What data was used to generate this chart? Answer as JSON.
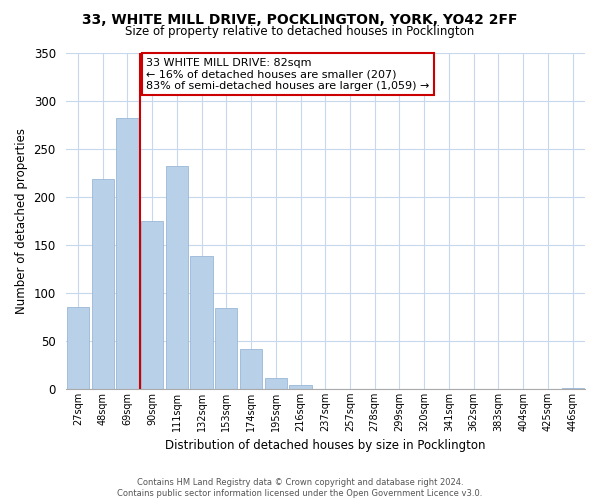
{
  "title": "33, WHITE MILL DRIVE, POCKLINGTON, YORK, YO42 2FF",
  "subtitle": "Size of property relative to detached houses in Pocklington",
  "xlabel": "Distribution of detached houses by size in Pocklington",
  "ylabel": "Number of detached properties",
  "bar_labels": [
    "27sqm",
    "48sqm",
    "69sqm",
    "90sqm",
    "111sqm",
    "132sqm",
    "153sqm",
    "174sqm",
    "195sqm",
    "216sqm",
    "237sqm",
    "257sqm",
    "278sqm",
    "299sqm",
    "320sqm",
    "341sqm",
    "362sqm",
    "383sqm",
    "404sqm",
    "425sqm",
    "446sqm"
  ],
  "bar_values": [
    85,
    218,
    282,
    175,
    232,
    138,
    84,
    41,
    11,
    4,
    0,
    0,
    0,
    0,
    0,
    0,
    0,
    0,
    0,
    0,
    1
  ],
  "bar_color": "#b8d0e8",
  "bar_edge_color": "#9ab8d8",
  "vline_x": 2.5,
  "vline_color": "#cc0000",
  "ylim": [
    0,
    350
  ],
  "yticks": [
    0,
    50,
    100,
    150,
    200,
    250,
    300,
    350
  ],
  "annotation_title": "33 WHITE MILL DRIVE: 82sqm",
  "annotation_line1": "← 16% of detached houses are smaller (207)",
  "annotation_line2": "83% of semi-detached houses are larger (1,059) →",
  "annotation_box_color": "#ffffff",
  "annotation_border_color": "#cc0000",
  "footer1": "Contains HM Land Registry data © Crown copyright and database right 2024.",
  "footer2": "Contains public sector information licensed under the Open Government Licence v3.0.",
  "background_color": "#ffffff",
  "grid_color": "#c8d8ec"
}
